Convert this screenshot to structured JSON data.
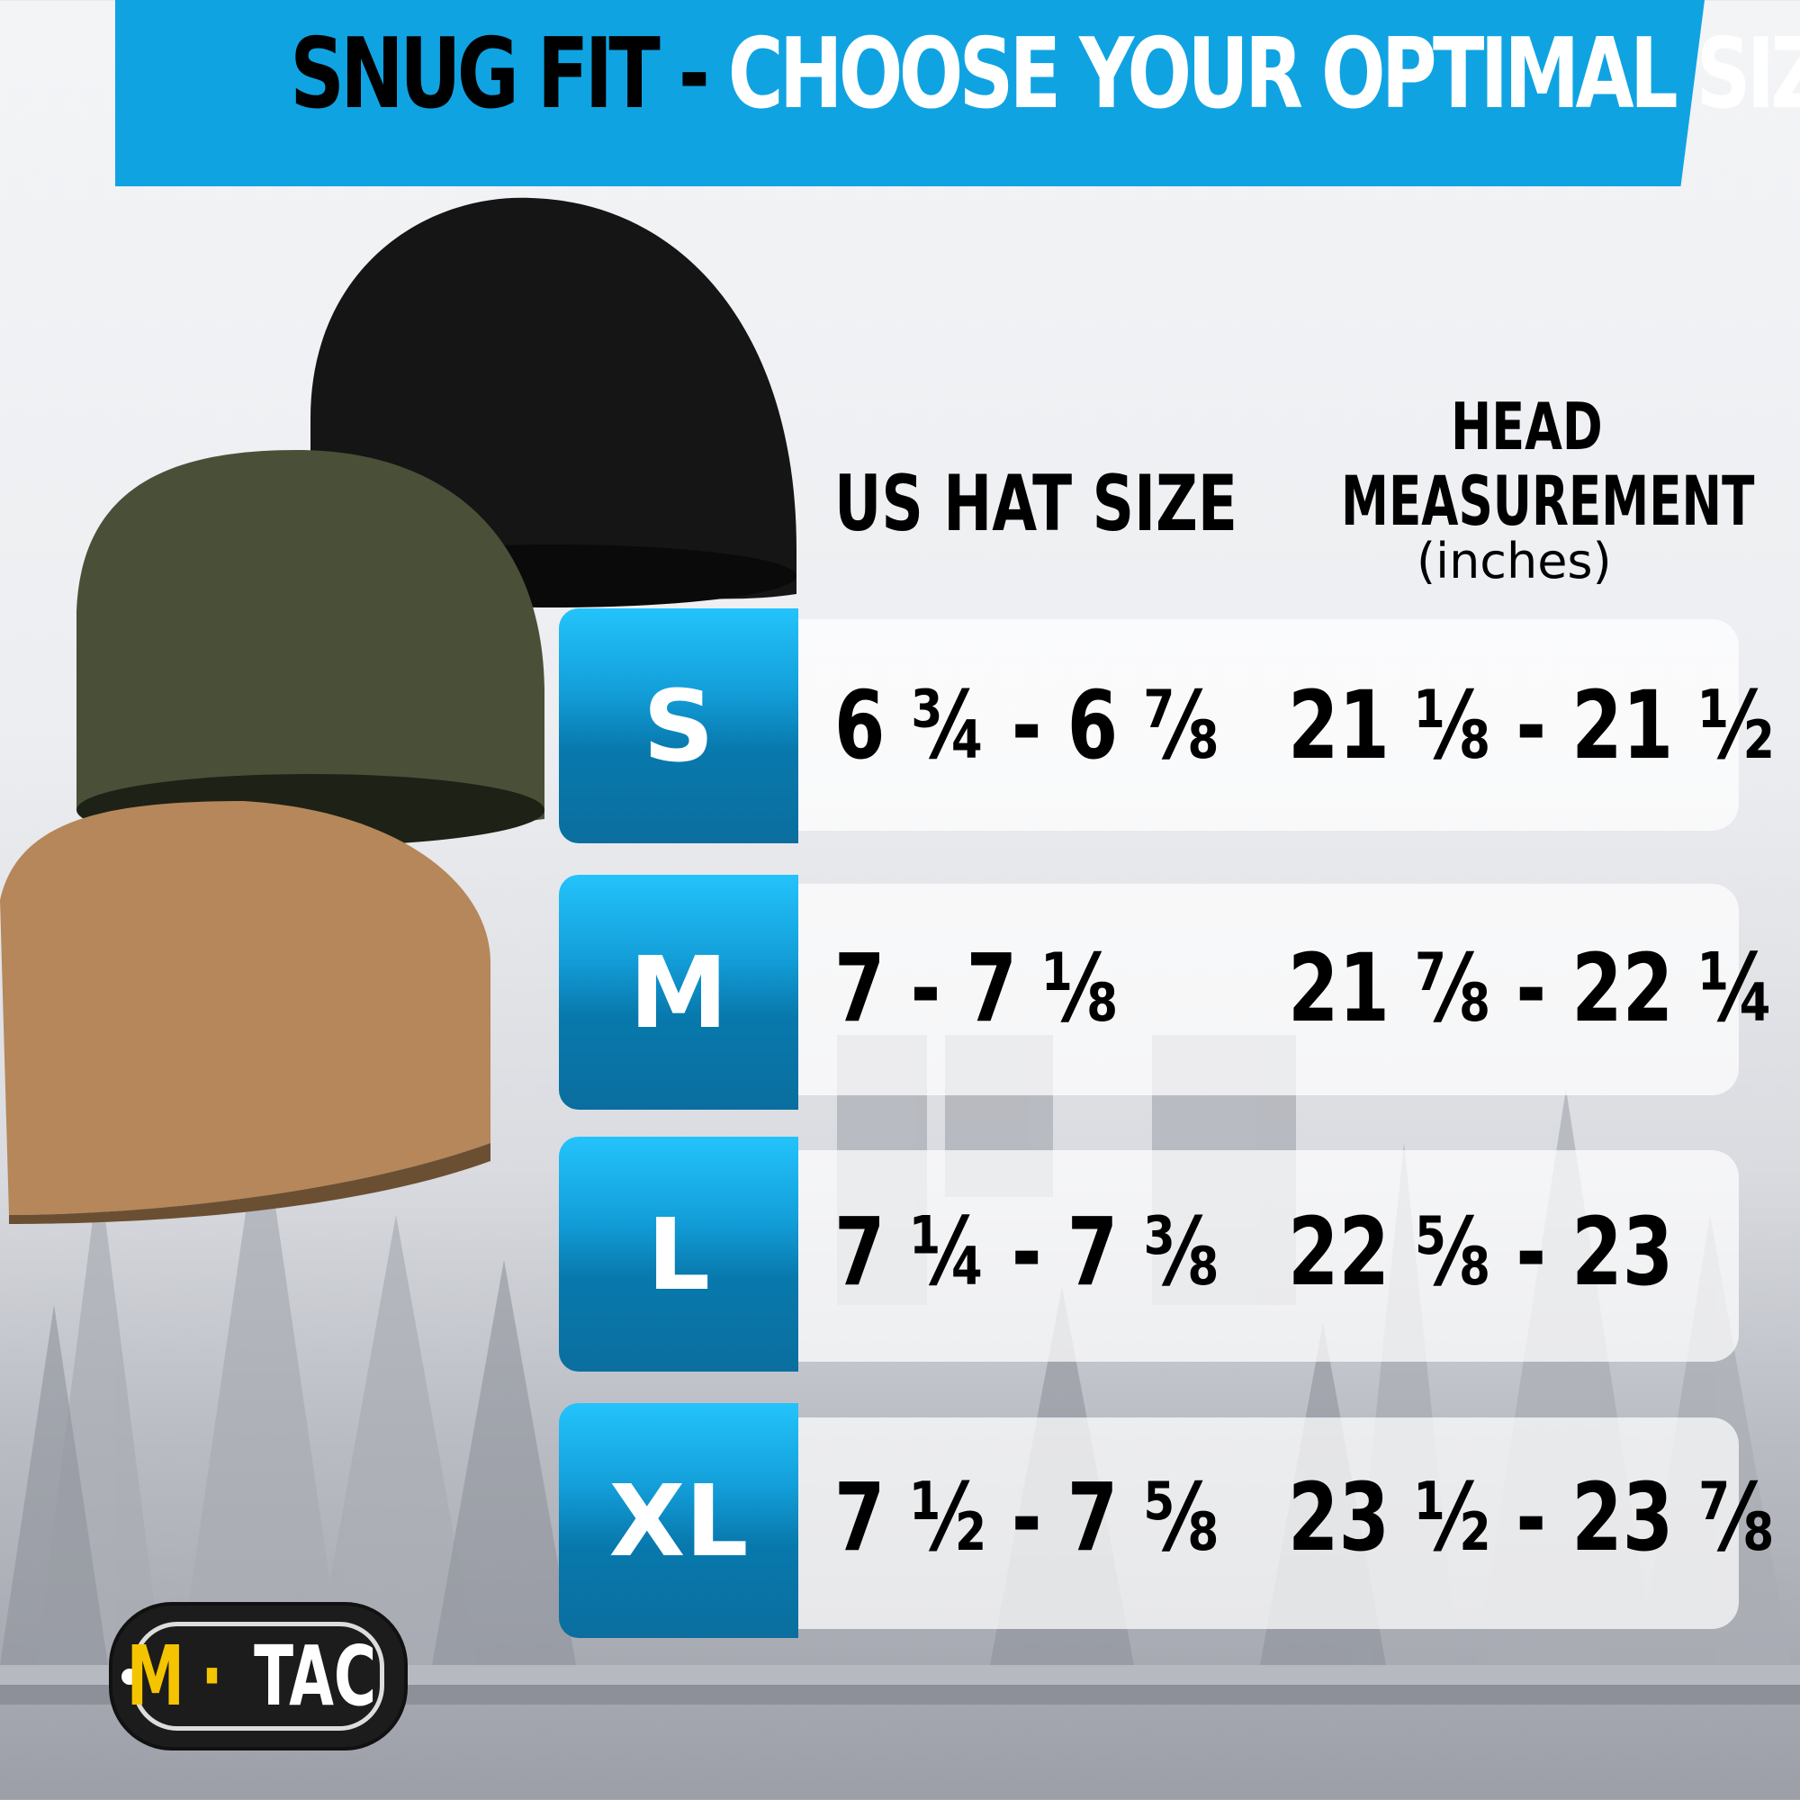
{
  "title": {
    "part1": "SNUG FIT -",
    "part2": "CHOOSE YOUR OPTIMAL SIZE"
  },
  "headers": {
    "hat_size": "US HAT SIZE",
    "head_line1": "HEAD",
    "head_line2": "MEASUREMENT",
    "head_unit": "(inches)"
  },
  "rows": [
    {
      "size": "S",
      "hat": "6 ¾ - 6 ⅞",
      "head": "21 ⅛ - 21 ½"
    },
    {
      "size": "M",
      "hat": "7 - 7 ⅛",
      "head": "21 ⅞ - 22 ¼"
    },
    {
      "size": "L",
      "hat": "7 ¼ - 7 ⅜",
      "head": "22 ⅝ - 23"
    },
    {
      "size": "XL",
      "hat": "7 ½ - 7 ⅝",
      "head": "23 ½ - 23 ⅞"
    }
  ],
  "logo": {
    "m": "M",
    "dot": "·",
    "tac": "TAC"
  },
  "colors": {
    "accent": "#10a3e2",
    "logo_yellow": "#f5c400",
    "hat_black": "#151515",
    "hat_olive": "#4a5038",
    "hat_coyote": "#b5875a"
  }
}
